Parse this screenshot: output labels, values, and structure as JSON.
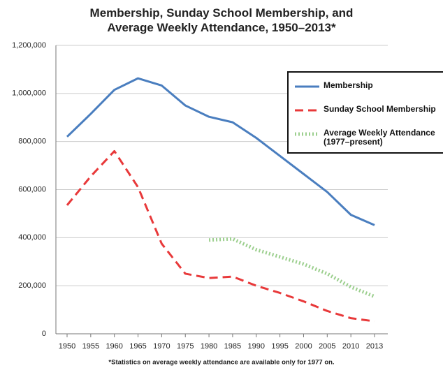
{
  "chart_data": {
    "type": "line",
    "title": "Membership, Sunday School Membership, and Average Weekly Attendance, 1950–2013*",
    "footnote": "*Statistics on average weekly attendance are available only for 1977 on.",
    "categories": [
      "1950",
      "1955",
      "1960",
      "1965",
      "1970",
      "1975",
      "1980",
      "1985",
      "1990",
      "1995",
      "2000",
      "2005",
      "2010",
      "2013"
    ],
    "series": [
      {
        "name": "Membership",
        "color": "#4a7ebf",
        "style": "solid",
        "values": [
          820000,
          915000,
          1015000,
          1063000,
          1033000,
          950000,
          903000,
          880000,
          815000,
          740000,
          665000,
          590000,
          495000,
          452000
        ]
      },
      {
        "name": "Sunday School Membership",
        "color": "#e8393a",
        "style": "dashed",
        "values": [
          535000,
          655000,
          760000,
          610000,
          375000,
          250000,
          232000,
          238000,
          200000,
          170000,
          135000,
          95000,
          65000,
          52000
        ]
      },
      {
        "name": "Average Weekly Attendance (1977–present)",
        "color": "#9ccf8e",
        "style": "dotted",
        "values": [
          null,
          null,
          null,
          null,
          null,
          null,
          390000,
          395000,
          350000,
          320000,
          290000,
          250000,
          195000,
          155000
        ]
      }
    ],
    "ylim": [
      0,
      1200000
    ],
    "yticks": [
      0,
      {
        "value": 200000,
        "label": "200,000"
      },
      {
        "value": 400000,
        "label": "400,000"
      },
      {
        "value": 600000,
        "label": "600,000"
      },
      {
        "value": 800000,
        "label": "800,000"
      },
      {
        "value": 1000000,
        "label": "1,000,000"
      },
      {
        "value": 1200000,
        "label": "1,200,000"
      }
    ],
    "grid": true
  }
}
